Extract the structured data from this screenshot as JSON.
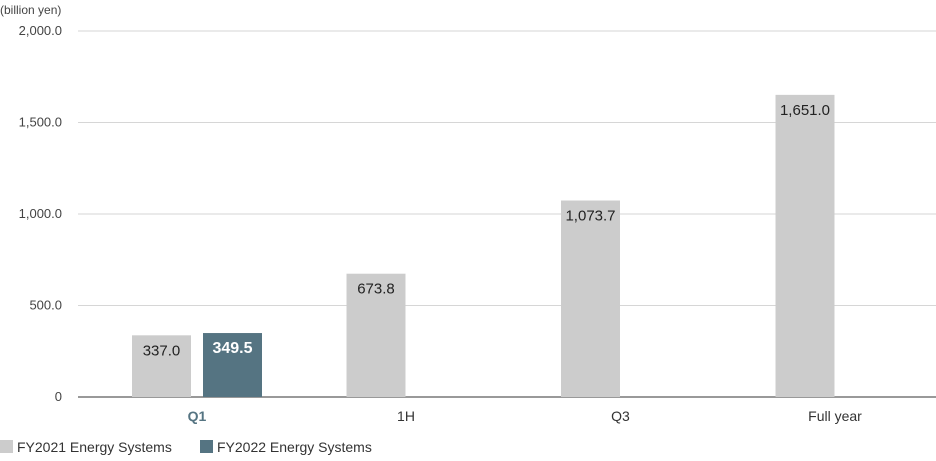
{
  "chart_data": {
    "type": "bar",
    "unit_label": "(billion yen)",
    "categories": [
      "Q1",
      "1H",
      "Q3",
      "Full year"
    ],
    "highlight_category": "Q1",
    "ylim": [
      0,
      2000
    ],
    "yticks": [
      0,
      500,
      1000,
      1500,
      2000
    ],
    "ytick_labels": [
      "0",
      "500.0",
      "1,000.0",
      "1,500.0",
      "2,000.0"
    ],
    "grid": true,
    "legend_position": "bottom-left",
    "series": [
      {
        "name": "FY2021 Energy Systems",
        "color": "#cccccc",
        "values": [
          337.0,
          673.8,
          1073.7,
          1651.0
        ],
        "labels": [
          "337.0",
          "673.8",
          "1,073.7",
          "1,651.0"
        ]
      },
      {
        "name": "FY2022 Energy Systems",
        "color": "#557482",
        "values": [
          349.5,
          null,
          null,
          null
        ],
        "labels": [
          "349.5",
          null,
          null,
          null
        ]
      }
    ]
  }
}
